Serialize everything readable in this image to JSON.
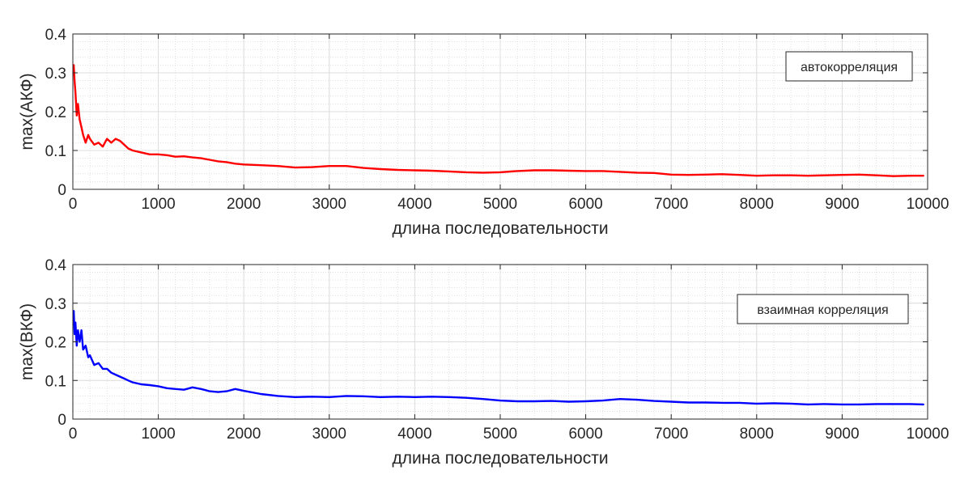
{
  "chart_data": [
    {
      "type": "line",
      "xlabel": "длина последовательности",
      "ylabel": "max(АКФ)",
      "xlim": [
        0,
        10000
      ],
      "ylim": [
        0,
        0.4
      ],
      "xticks": [
        "0",
        "1000",
        "2000",
        "3000",
        "4000",
        "5000",
        "6000",
        "7000",
        "8000",
        "9000",
        "10000"
      ],
      "yticks": [
        "0",
        "0.1",
        "0.2",
        "0.3",
        "0.4"
      ],
      "grid": true,
      "minor_grid": true,
      "legend_position": "top-right",
      "series": [
        {
          "name": "автокорреляция",
          "color": "#ff0000",
          "x": [
            10,
            20,
            30,
            45,
            60,
            80,
            100,
            120,
            150,
            180,
            200,
            250,
            300,
            350,
            400,
            450,
            500,
            550,
            600,
            650,
            700,
            800,
            900,
            1000,
            1100,
            1200,
            1300,
            1400,
            1500,
            1600,
            1700,
            1800,
            1900,
            2000,
            2200,
            2400,
            2600,
            2800,
            3000,
            3200,
            3400,
            3600,
            3800,
            4000,
            4200,
            4400,
            4600,
            4800,
            5000,
            5200,
            5400,
            5600,
            5800,
            6000,
            6200,
            6400,
            6600,
            6800,
            7000,
            7200,
            7400,
            7600,
            7800,
            8000,
            8200,
            8400,
            8600,
            8800,
            9000,
            9200,
            9400,
            9600,
            9800,
            9950
          ],
          "y": [
            0.32,
            0.28,
            0.25,
            0.19,
            0.22,
            0.18,
            0.16,
            0.14,
            0.12,
            0.14,
            0.13,
            0.115,
            0.12,
            0.11,
            0.13,
            0.12,
            0.13,
            0.125,
            0.115,
            0.105,
            0.1,
            0.095,
            0.09,
            0.09,
            0.088,
            0.084,
            0.085,
            0.082,
            0.08,
            0.076,
            0.072,
            0.07,
            0.066,
            0.064,
            0.062,
            0.06,
            0.056,
            0.057,
            0.06,
            0.06,
            0.055,
            0.052,
            0.05,
            0.049,
            0.048,
            0.046,
            0.044,
            0.043,
            0.044,
            0.047,
            0.049,
            0.049,
            0.048,
            0.047,
            0.047,
            0.045,
            0.043,
            0.042,
            0.038,
            0.037,
            0.038,
            0.039,
            0.037,
            0.035,
            0.036,
            0.036,
            0.035,
            0.036,
            0.037,
            0.038,
            0.036,
            0.034,
            0.035,
            0.035
          ]
        }
      ]
    },
    {
      "type": "line",
      "xlabel": "длина последовательности",
      "ylabel": "max(ВКФ)",
      "xlim": [
        0,
        10000
      ],
      "ylim": [
        0,
        0.4
      ],
      "xticks": [
        "0",
        "1000",
        "2000",
        "3000",
        "4000",
        "5000",
        "6000",
        "7000",
        "8000",
        "9000",
        "10000"
      ],
      "yticks": [
        "0",
        "0.1",
        "0.2",
        "0.3",
        "0.4"
      ],
      "grid": true,
      "minor_grid": true,
      "legend_position": "top-right",
      "series": [
        {
          "name": "взаимная корреляция",
          "color": "#0000ff",
          "x": [
            10,
            20,
            30,
            45,
            60,
            80,
            100,
            120,
            150,
            180,
            200,
            250,
            300,
            350,
            400,
            450,
            500,
            550,
            600,
            650,
            700,
            800,
            900,
            1000,
            1100,
            1200,
            1300,
            1400,
            1500,
            1600,
            1700,
            1800,
            1900,
            2000,
            2200,
            2400,
            2600,
            2800,
            3000,
            3200,
            3400,
            3600,
            3800,
            4000,
            4200,
            4400,
            4600,
            4800,
            5000,
            5200,
            5400,
            5600,
            5800,
            6000,
            6200,
            6400,
            6600,
            6800,
            7000,
            7200,
            7400,
            7600,
            7800,
            8000,
            8200,
            8400,
            8600,
            8800,
            9000,
            9200,
            9400,
            9600,
            9800,
            9950
          ],
          "y": [
            0.28,
            0.22,
            0.25,
            0.19,
            0.23,
            0.2,
            0.23,
            0.18,
            0.19,
            0.16,
            0.165,
            0.14,
            0.145,
            0.13,
            0.13,
            0.12,
            0.115,
            0.11,
            0.105,
            0.1,
            0.095,
            0.09,
            0.088,
            0.085,
            0.08,
            0.078,
            0.076,
            0.082,
            0.078,
            0.072,
            0.07,
            0.072,
            0.078,
            0.073,
            0.065,
            0.06,
            0.057,
            0.058,
            0.057,
            0.06,
            0.059,
            0.057,
            0.058,
            0.057,
            0.058,
            0.057,
            0.055,
            0.052,
            0.048,
            0.046,
            0.046,
            0.047,
            0.045,
            0.046,
            0.048,
            0.052,
            0.05,
            0.047,
            0.045,
            0.043,
            0.043,
            0.042,
            0.042,
            0.04,
            0.041,
            0.04,
            0.038,
            0.039,
            0.038,
            0.038,
            0.039,
            0.039,
            0.039,
            0.038
          ]
        }
      ]
    }
  ]
}
